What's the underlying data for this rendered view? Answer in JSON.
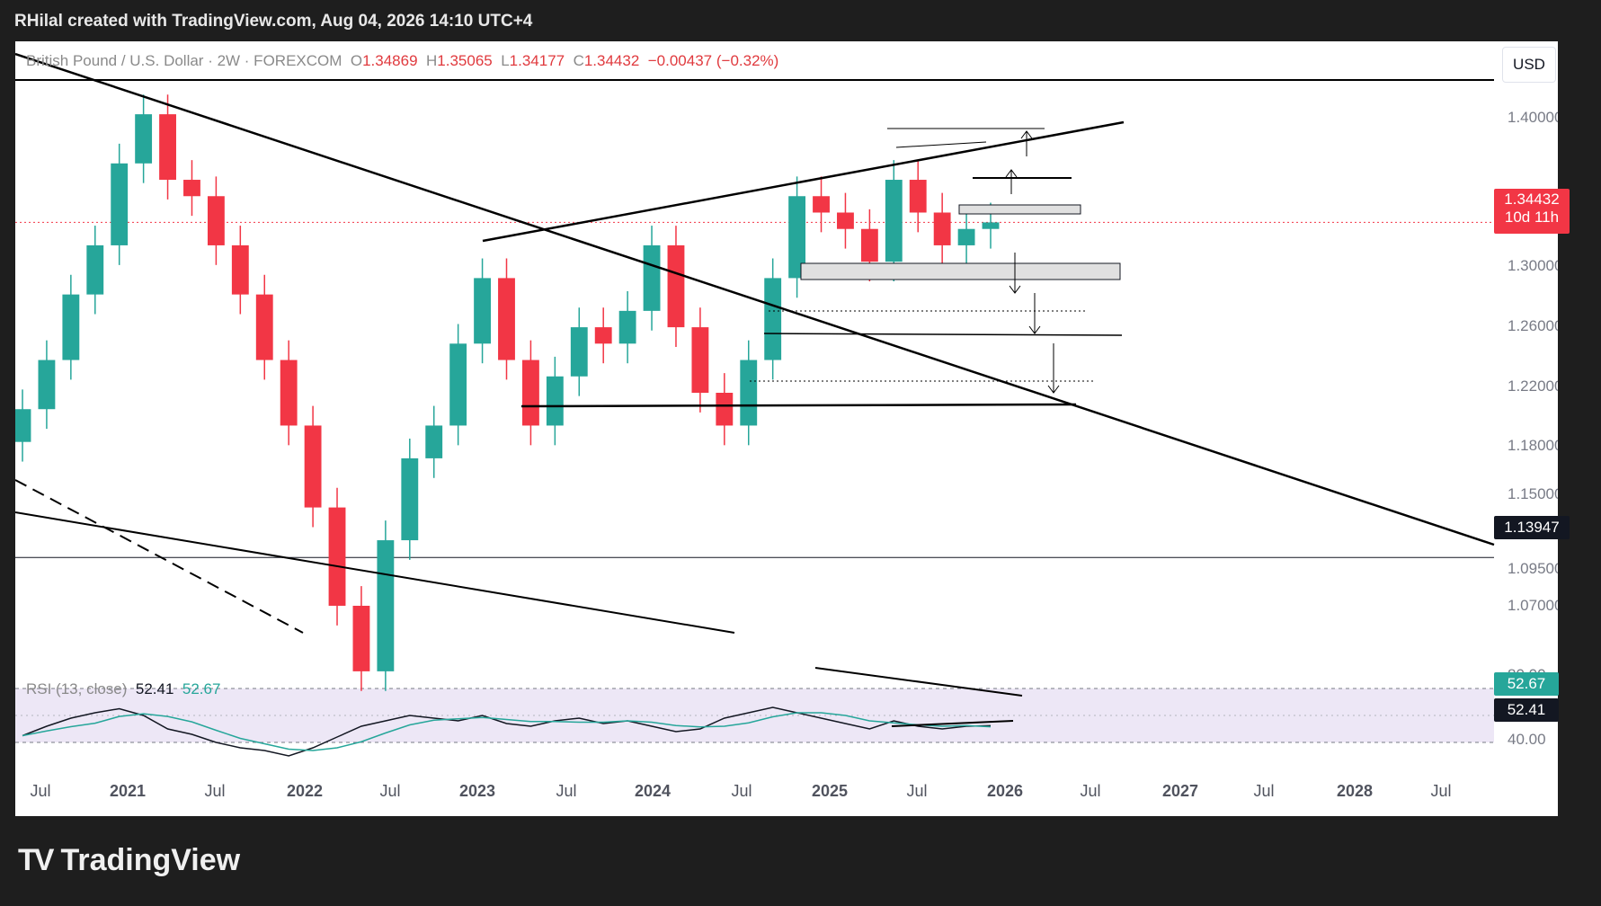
{
  "header": {
    "attribution": "RHilal created with TradingView.com, Aug 04, 2026 14:10 UTC+4"
  },
  "symbol": {
    "name": "British Pound / U.S. Dollar · 2W · FOREXCOM",
    "open_label": "O",
    "open": "1.34869",
    "high_label": "H",
    "high": "1.35065",
    "low_label": "L",
    "low": "1.34177",
    "close_label": "C",
    "close": "1.34432",
    "change": "−0.00437 (−0.32%)"
  },
  "currency_button": "USD",
  "price_tag": {
    "price": "1.34432",
    "countdown": "10d 11h",
    "color": "#f23645"
  },
  "level_tag": {
    "price": "1.13947"
  },
  "rsi": {
    "label": "RSI (13, close)",
    "value": "52.41",
    "ma_value": "52.67",
    "level_upper": "80.00",
    "level_lower": "40.00"
  },
  "footer": {
    "brand": "TradingView"
  },
  "colors": {
    "up": "#26a69a",
    "down": "#f23645",
    "rsi_ma": "#26a69a",
    "line": "#000000"
  },
  "chart_data": {
    "type": "candlestick",
    "title": "British Pound / U.S. Dollar · 2W · FOREXCOM",
    "y_ticks": [
      "1.40000",
      "1.30000",
      "1.26000",
      "1.22000",
      "1.18000",
      "1.15000",
      "1.12000",
      "1.09500",
      "1.07000"
    ],
    "x_ticks": [
      "Jul",
      "2021",
      "Jul",
      "2022",
      "Jul",
      "2023",
      "Jul",
      "2024",
      "Jul",
      "2025",
      "Jul",
      "2026",
      "Jul",
      "2027",
      "Jul",
      "2028",
      "Jul"
    ],
    "horizontal_line": 1.13947,
    "series": [
      {
        "name": "Price",
        "values": [
          1.23,
          1.26,
          1.3,
          1.33,
          1.38,
          1.41,
          1.37,
          1.36,
          1.33,
          1.3,
          1.26,
          1.22,
          1.17,
          1.11,
          1.07,
          1.15,
          1.2,
          1.22,
          1.27,
          1.31,
          1.26,
          1.22,
          1.25,
          1.28,
          1.27,
          1.29,
          1.33,
          1.28,
          1.24,
          1.22,
          1.26,
          1.31,
          1.36,
          1.35,
          1.34,
          1.32,
          1.37,
          1.35,
          1.33,
          1.34,
          1.344
        ]
      }
    ],
    "rsi_series": [
      {
        "name": "RSI",
        "values": [
          45,
          52,
          58,
          62,
          65,
          60,
          50,
          46,
          40,
          36,
          34,
          30,
          36,
          44,
          52,
          56,
          60,
          58,
          56,
          60,
          54,
          52,
          56,
          58,
          54,
          56,
          52,
          48,
          50,
          58,
          62,
          66,
          62,
          58,
          54,
          50,
          56,
          52,
          50,
          52,
          52.41
        ]
      }
    ]
  }
}
